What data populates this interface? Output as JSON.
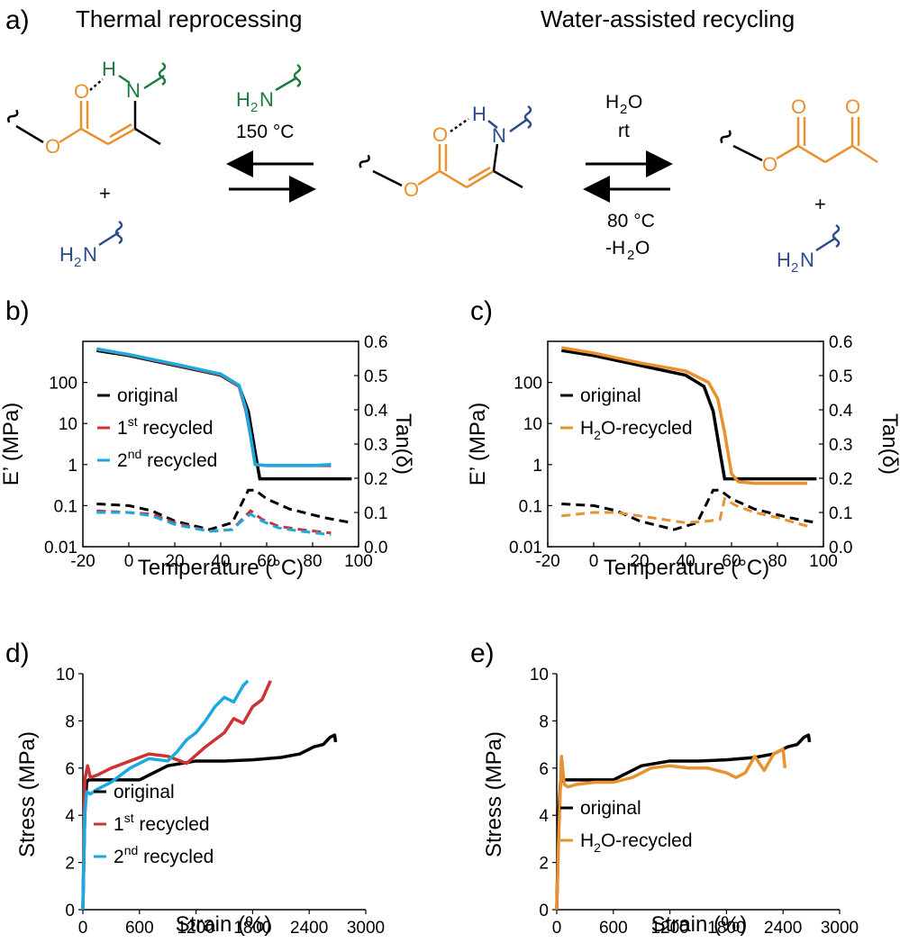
{
  "panel_a": {
    "label": "a)",
    "title_left": "Thermal reprocessing",
    "title_right": "Water-assisted recycling",
    "left_conditions": {
      "reagent": "H2N",
      "temp": "150 °C"
    },
    "right_conditions_top": {
      "reagent": "H2O",
      "temp": "rt"
    },
    "right_conditions_bottom": {
      "temp": "80 °C",
      "byproduct": "-H2O"
    },
    "plus": "+",
    "colors": {
      "orange": "#e8912e",
      "green": "#1f7a3f",
      "blue": "#2d4a8a"
    }
  },
  "chart_data": [
    {
      "panel": "b)",
      "type": "line",
      "xlabel": "Temperature (°C)",
      "ylabel": "E’ (MPa)",
      "y2label": "Tan(δ)",
      "xlim": [
        -20,
        100
      ],
      "ylim_log": [
        0.01,
        1000
      ],
      "y2lim": [
        0.0,
        0.6
      ],
      "xticks": [
        "-20",
        "0",
        "20",
        "40",
        "60",
        "80",
        "100"
      ],
      "yticks": [
        "0.01",
        "0.1",
        "1",
        "10",
        "100"
      ],
      "y2ticks": [
        "0.0",
        "0.1",
        "0.2",
        "0.3",
        "0.4",
        "0.5",
        "0.6"
      ],
      "legend": [
        {
          "name": "original",
          "sup": "",
          "color": "#000000"
        },
        {
          "name": "1",
          "sup": "st",
          "suffix": " recycled",
          "color": "#cc3333"
        },
        {
          "name": "2",
          "sup": "nd",
          "suffix": " recycled",
          "color": "#1ba9df"
        }
      ],
      "series": [
        {
          "name": "original",
          "kind": "modulus",
          "color": "#000000",
          "x": [
            -14,
            0,
            20,
            40,
            48,
            52,
            55,
            57,
            60,
            80,
            97
          ],
          "y": [
            600,
            450,
            260,
            150,
            80,
            20,
            2,
            0.45,
            0.45,
            0.45,
            0.45
          ]
        },
        {
          "name": "1st recycled",
          "kind": "modulus",
          "color": "#cc3333",
          "x": [
            -14,
            0,
            20,
            40,
            48,
            51,
            53,
            55,
            60,
            80,
            88
          ],
          "y": [
            650,
            470,
            270,
            155,
            80,
            20,
            5,
            1.0,
            0.95,
            0.95,
            0.95
          ]
        },
        {
          "name": "2nd recycled",
          "kind": "modulus",
          "color": "#1ba9df",
          "x": [
            -14,
            0,
            20,
            40,
            48,
            51,
            53,
            55,
            60,
            80,
            88
          ],
          "y": [
            650,
            480,
            280,
            160,
            85,
            22,
            5,
            1.0,
            0.95,
            0.95,
            1.0
          ]
        },
        {
          "name": "original",
          "kind": "tan",
          "color": "#000000",
          "x": [
            -14,
            0,
            10,
            20,
            35,
            45,
            52,
            55,
            60,
            70,
            85,
            97
          ],
          "y": [
            0.125,
            0.12,
            0.105,
            0.075,
            0.05,
            0.07,
            0.165,
            0.165,
            0.14,
            0.11,
            0.085,
            0.07
          ]
        },
        {
          "name": "1st recycled",
          "kind": "tan",
          "color": "#cc3333",
          "x": [
            -14,
            0,
            10,
            20,
            35,
            45,
            50,
            53,
            58,
            65,
            75,
            88
          ],
          "y": [
            0.105,
            0.1,
            0.095,
            0.07,
            0.045,
            0.05,
            0.085,
            0.105,
            0.08,
            0.06,
            0.05,
            0.04
          ]
        },
        {
          "name": "2nd recycled",
          "kind": "tan",
          "color": "#1ba9df",
          "x": [
            -14,
            0,
            10,
            20,
            35,
            45,
            50,
            53,
            58,
            65,
            75,
            88
          ],
          "y": [
            0.1,
            0.1,
            0.09,
            0.065,
            0.045,
            0.05,
            0.08,
            0.095,
            0.075,
            0.055,
            0.045,
            0.035
          ]
        }
      ]
    },
    {
      "panel": "c)",
      "type": "line",
      "xlabel": "Temperature (°C)",
      "ylabel": "E’ (MPa)",
      "y2label": "Tan(δ)",
      "xlim": [
        -20,
        100
      ],
      "ylim_log": [
        0.01,
        1000
      ],
      "y2lim": [
        0.0,
        0.6
      ],
      "xticks": [
        "-20",
        "0",
        "20",
        "40",
        "60",
        "80",
        "100"
      ],
      "yticks": [
        "0.01",
        "0.1",
        "1",
        "10",
        "100"
      ],
      "y2ticks": [
        "0.0",
        "0.1",
        "0.2",
        "0.3",
        "0.4",
        "0.5",
        "0.6"
      ],
      "legend": [
        {
          "name": "original",
          "sup": "",
          "color": "#000000"
        },
        {
          "name": "H",
          "sub": "2",
          "suffix": "O-recycled",
          "color": "#e8912e"
        }
      ],
      "series": [
        {
          "name": "original",
          "kind": "modulus",
          "color": "#000000",
          "x": [
            -14,
            0,
            20,
            40,
            48,
            52,
            55,
            57,
            60,
            80,
            97
          ],
          "y": [
            600,
            450,
            260,
            150,
            80,
            20,
            2,
            0.45,
            0.45,
            0.45,
            0.45
          ]
        },
        {
          "name": "H2O-recycled",
          "kind": "modulus",
          "color": "#e8912e",
          "x": [
            -14,
            0,
            20,
            40,
            50,
            54,
            57,
            60,
            63,
            70,
            80,
            93
          ],
          "y": [
            700,
            520,
            300,
            190,
            100,
            40,
            6,
            0.6,
            0.38,
            0.35,
            0.35,
            0.35
          ]
        },
        {
          "name": "original",
          "kind": "tan",
          "color": "#000000",
          "x": [
            -14,
            0,
            10,
            20,
            35,
            45,
            52,
            55,
            60,
            70,
            85,
            97
          ],
          "y": [
            0.125,
            0.12,
            0.105,
            0.075,
            0.05,
            0.07,
            0.165,
            0.165,
            0.14,
            0.11,
            0.085,
            0.07
          ]
        },
        {
          "name": "H2O-recycled",
          "kind": "tan",
          "color": "#e8912e",
          "x": [
            -14,
            0,
            10,
            20,
            30,
            40,
            50,
            55,
            57,
            62,
            70,
            80,
            93
          ],
          "y": [
            0.09,
            0.1,
            0.1,
            0.09,
            0.08,
            0.07,
            0.075,
            0.08,
            0.14,
            0.12,
            0.1,
            0.085,
            0.06
          ]
        }
      ]
    },
    {
      "panel": "d)",
      "type": "line",
      "xlabel": "Strain (%)",
      "ylabel": "Stress  (MPa)",
      "xlim": [
        0,
        3000
      ],
      "ylim": [
        0,
        10
      ],
      "xticks": [
        "0",
        "600",
        "1200",
        "1800",
        "2400",
        "3000"
      ],
      "yticks": [
        "0",
        "2",
        "4",
        "6",
        "8",
        "10"
      ],
      "legend": [
        {
          "name": "original",
          "sup": "",
          "color": "#000000"
        },
        {
          "name": "1",
          "sup": "st",
          "suffix": " recycled",
          "color": "#cc3333"
        },
        {
          "name": "2",
          "sup": "nd",
          "suffix": " recycled",
          "color": "#1ba9df"
        }
      ],
      "series": [
        {
          "name": "original",
          "color": "#000000",
          "x": [
            0,
            20,
            40,
            60,
            100,
            300,
            600,
            700,
            900,
            1200,
            1500,
            1800,
            2100,
            2300,
            2450,
            2550,
            2620,
            2670,
            2680
          ],
          "y": [
            0,
            4,
            5.4,
            5.5,
            5.5,
            5.5,
            5.5,
            5.7,
            6.1,
            6.3,
            6.3,
            6.35,
            6.45,
            6.6,
            6.9,
            7.0,
            7.3,
            7.4,
            7.1
          ]
        },
        {
          "name": "1st recycled",
          "color": "#cc3333",
          "x": [
            0,
            20,
            50,
            80,
            150,
            300,
            500,
            700,
            900,
            1100,
            1300,
            1400,
            1500,
            1600,
            1700,
            1800,
            1900,
            1990
          ],
          "y": [
            0,
            5.5,
            6.1,
            5.6,
            5.7,
            6.0,
            6.3,
            6.6,
            6.5,
            6.2,
            6.9,
            7.2,
            7.5,
            8.1,
            7.9,
            8.6,
            8.9,
            9.7
          ]
        },
        {
          "name": "2nd recycled",
          "color": "#1ba9df",
          "x": [
            0,
            20,
            40,
            80,
            150,
            300,
            500,
            700,
            900,
            1000,
            1100,
            1200,
            1300,
            1400,
            1500,
            1600,
            1700,
            1750
          ],
          "y": [
            0,
            4.0,
            5.0,
            4.9,
            5.1,
            5.4,
            6.0,
            6.4,
            6.3,
            6.7,
            7.2,
            7.5,
            8.0,
            8.6,
            9.0,
            8.8,
            9.5,
            9.7
          ]
        }
      ]
    },
    {
      "panel": "e)",
      "type": "line",
      "xlabel": "Strain (%)",
      "ylabel": "Stress  (MPa)",
      "xlim": [
        0,
        3000
      ],
      "ylim": [
        0,
        10
      ],
      "xticks": [
        "0",
        "600",
        "1200",
        "1800",
        "2400",
        "3000"
      ],
      "yticks": [
        "0",
        "2",
        "4",
        "6",
        "8",
        "10"
      ],
      "legend": [
        {
          "name": "original",
          "sup": "",
          "color": "#000000"
        },
        {
          "name": "H",
          "sub": "2",
          "suffix": "O-recycled",
          "color": "#e8912e"
        }
      ],
      "series": [
        {
          "name": "original",
          "color": "#000000",
          "x": [
            0,
            20,
            40,
            60,
            100,
            300,
            600,
            700,
            900,
            1200,
            1500,
            1800,
            2100,
            2300,
            2450,
            2550,
            2620,
            2670,
            2680
          ],
          "y": [
            0,
            4,
            5.4,
            5.5,
            5.5,
            5.5,
            5.5,
            5.7,
            6.1,
            6.3,
            6.3,
            6.35,
            6.45,
            6.6,
            6.9,
            7.0,
            7.3,
            7.4,
            7.1
          ]
        },
        {
          "name": "H2O-recycled",
          "color": "#e8912e",
          "x": [
            0,
            20,
            50,
            80,
            120,
            200,
            400,
            600,
            800,
            1000,
            1200,
            1400,
            1600,
            1800,
            1900,
            2000,
            2100,
            2200,
            2300,
            2400,
            2420
          ],
          "y": [
            0,
            3,
            6.5,
            5.3,
            5.2,
            5.3,
            5.4,
            5.4,
            5.6,
            6.0,
            6.1,
            6.0,
            6.0,
            5.8,
            5.6,
            5.8,
            6.5,
            5.9,
            6.6,
            6.8,
            6.0
          ]
        }
      ]
    }
  ]
}
